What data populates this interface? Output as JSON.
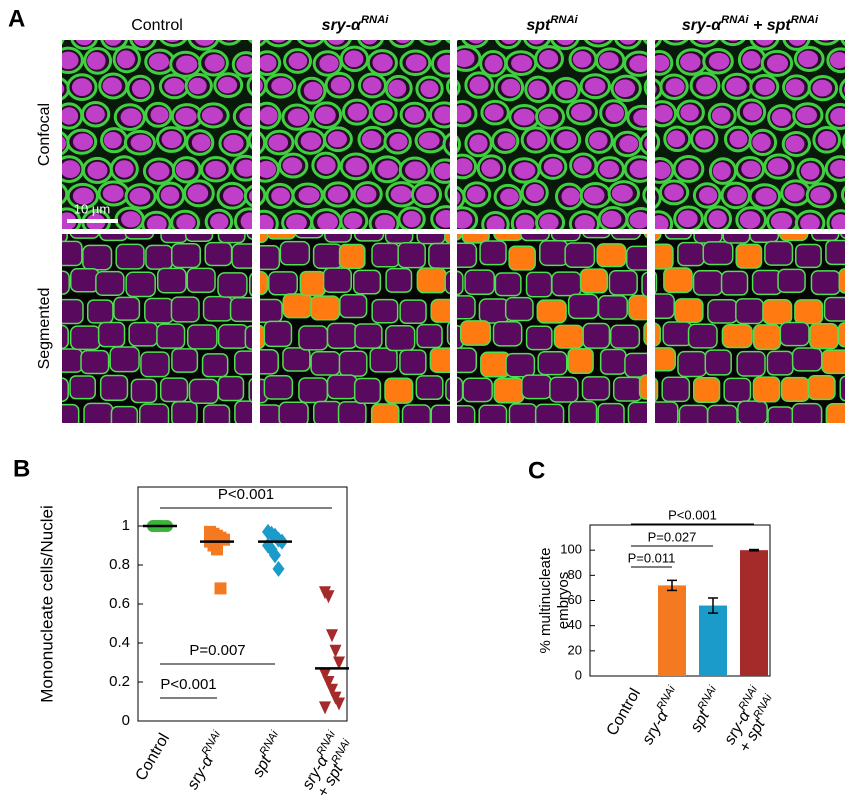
{
  "panel_a": {
    "label": "A",
    "columns": [
      "Control",
      [
        "sry-α",
        {
          "text": "RNAi",
          "sup": true
        }
      ],
      [
        "spt",
        {
          "text": "RNAi",
          "sup": true
        }
      ],
      [
        "sry-α",
        {
          "text": "RNAi",
          "sup": true
        },
        " + spt",
        {
          "text": "RNAi",
          "sup": true
        }
      ]
    ],
    "rows": [
      "Confocal",
      "Segmented"
    ],
    "scale_bar": "10 µm"
  },
  "chart_data": [
    {
      "type": "strip",
      "label": "B",
      "ylabel": "Mononucleate cells/Nuclei",
      "ylim": [
        0,
        1.2
      ],
      "yticks": [
        0,
        0.2,
        0.4,
        0.6,
        0.8,
        1
      ],
      "categories": [
        "Control",
        [
          "sry-α",
          {
            "text": "RNAi",
            "sup": true
          }
        ],
        [
          "spt",
          {
            "text": "RNAi",
            "sup": true
          }
        ],
        [
          [
            "sry-α",
            {
              "text": "RNAi",
              "sup": true
            }
          ],
          [
            "+ spt",
            {
              "text": "RNAi",
              "sup": true
            }
          ]
        ]
      ],
      "groups": [
        {
          "color": "#3cb43c",
          "marker": "circle",
          "values": [
            1,
            1,
            1,
            1,
            1,
            1,
            1,
            1
          ]
        },
        {
          "color": "#f47920",
          "marker": "square",
          "values": [
            0.97,
            0.96,
            0.95,
            0.94,
            0.93,
            0.92,
            0.9,
            0.88,
            0.68
          ]
        },
        {
          "color": "#1a9bc9",
          "marker": "diamond",
          "values": [
            0.97,
            0.96,
            0.95,
            0.93,
            0.92,
            0.9,
            0.88,
            0.85,
            0.78
          ]
        },
        {
          "color": "#a52a2a",
          "marker": "triangle-down",
          "values": [
            0.66,
            0.64,
            0.44,
            0.36,
            0.3,
            0.24,
            0.2,
            0.16,
            0.12,
            0.09,
            0.07
          ]
        }
      ],
      "means": [
        1,
        0.92,
        0.92,
        0.27
      ],
      "comparisons": [
        {
          "label": "P<0.001",
          "between": [
            0,
            3
          ]
        },
        {
          "label": "P=0.007",
          "between": [
            0,
            2
          ]
        },
        {
          "label": "P<0.001",
          "between": [
            0,
            1
          ]
        }
      ]
    },
    {
      "type": "bar",
      "label": "C",
      "ylabel": [
        "% multinucleate",
        "embryos"
      ],
      "ylim": [
        0,
        120
      ],
      "yticks": [
        0,
        20,
        40,
        60,
        80,
        100
      ],
      "categories": [
        "Control",
        [
          "sry-α",
          {
            "text": "RNAi",
            "sup": true
          }
        ],
        [
          "spt",
          {
            "text": "RNAi",
            "sup": true
          }
        ],
        [
          [
            "sry-α",
            {
              "text": "RNAi",
              "sup": true
            }
          ],
          [
            "+ spt",
            {
              "text": "RNAi",
              "sup": true
            }
          ]
        ]
      ],
      "values": [
        0,
        72,
        56,
        100
      ],
      "errors": [
        null,
        4,
        6,
        0.5
      ],
      "colors": [
        "#3cb43c",
        "#f47920",
        "#1a9bc9",
        "#a52a2a"
      ],
      "comparisons": [
        {
          "label": "P<0.001",
          "between": [
            0,
            3
          ]
        },
        {
          "label": "P=0.027",
          "between": [
            0,
            2
          ]
        },
        {
          "label": "P=0.011",
          "between": [
            0,
            1
          ]
        }
      ]
    }
  ]
}
